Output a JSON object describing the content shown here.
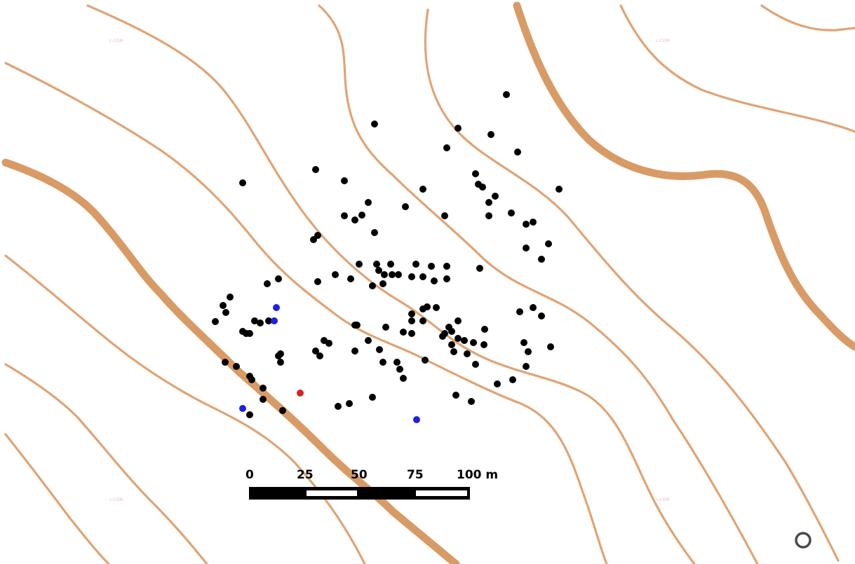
{
  "map": {
    "contour_color": "#dc9f6c",
    "index_contour_color": "#d99b65",
    "background": "#ffffff",
    "watermark_text": "c-COM"
  },
  "scale_bar": {
    "labels": [
      "0",
      "25",
      "50",
      "75",
      "100 m"
    ],
    "segment_m": 25,
    "total_m": 100
  },
  "markers": {
    "black": {
      "color": "#000000",
      "count": 151
    },
    "blue": {
      "color": "#1f1fe6",
      "count": 4
    },
    "red": {
      "color": "#d42424",
      "count": 1
    }
  },
  "control": {
    "icon": "circle-outline-icon"
  }
}
